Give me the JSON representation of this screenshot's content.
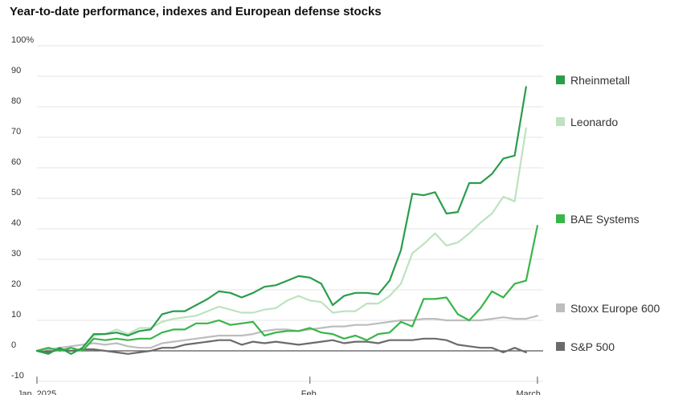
{
  "chart_data": {
    "type": "line",
    "title": "Year-to-date performance, indexes and European defense stocks",
    "y_ticks": [
      "100%",
      "90",
      "80",
      "70",
      "60",
      "50",
      "40",
      "30",
      "20",
      "10",
      "0",
      "-10"
    ],
    "y_tick_values": [
      100,
      90,
      80,
      70,
      60,
      50,
      40,
      30,
      20,
      10,
      0,
      -10
    ],
    "x_ticks": [
      "Jan. 2025",
      "Feb.",
      "March"
    ],
    "x_tick_values": [
      0,
      24,
      44
    ],
    "ylim": [
      -10,
      100
    ],
    "xlim": [
      0,
      44.5
    ],
    "grid": true,
    "legend": "right",
    "series": [
      {
        "name": "Rheinmetall",
        "color": "#2a9d4b",
        "values": [
          [
            0,
            0
          ],
          [
            1,
            -1
          ],
          [
            2,
            1
          ],
          [
            3,
            -1
          ],
          [
            4,
            1
          ],
          [
            5,
            5.5
          ],
          [
            6,
            5.5
          ],
          [
            7,
            6
          ],
          [
            8,
            5
          ],
          [
            9,
            6.5
          ],
          [
            10,
            7
          ],
          [
            11,
            12
          ],
          [
            12,
            13
          ],
          [
            13,
            13
          ],
          [
            14,
            15
          ],
          [
            15,
            17
          ],
          [
            16,
            19.5
          ],
          [
            17,
            19
          ],
          [
            18,
            17.5
          ],
          [
            19,
            19
          ],
          [
            20,
            21
          ],
          [
            21,
            21.5
          ],
          [
            22,
            23
          ],
          [
            23,
            24.5
          ],
          [
            24,
            24
          ],
          [
            25,
            22
          ],
          [
            26,
            15
          ],
          [
            27,
            18
          ],
          [
            28,
            19
          ],
          [
            29,
            19
          ],
          [
            30,
            18.5
          ],
          [
            31,
            23
          ],
          [
            32,
            33
          ],
          [
            33,
            51.5
          ],
          [
            34,
            51
          ],
          [
            35,
            52
          ],
          [
            36,
            45
          ],
          [
            37,
            45.5
          ],
          [
            38,
            55
          ],
          [
            39,
            55
          ],
          [
            40,
            58
          ],
          [
            41,
            63
          ],
          [
            42,
            64
          ],
          [
            43,
            86.5
          ]
        ]
      },
      {
        "name": "Leonardo",
        "color": "#bde3bf",
        "values": [
          [
            0,
            0
          ],
          [
            1,
            1
          ],
          [
            2,
            0
          ],
          [
            3,
            1
          ],
          [
            4,
            0
          ],
          [
            5,
            5
          ],
          [
            6,
            5.5
          ],
          [
            7,
            7
          ],
          [
            8,
            5.5
          ],
          [
            9,
            7.5
          ],
          [
            10,
            7.5
          ],
          [
            11,
            9.5
          ],
          [
            12,
            10.5
          ],
          [
            13,
            11
          ],
          [
            14,
            11.5
          ],
          [
            15,
            13
          ],
          [
            16,
            14.5
          ],
          [
            17,
            13.5
          ],
          [
            18,
            12.5
          ],
          [
            19,
            12.5
          ],
          [
            20,
            13.5
          ],
          [
            21,
            14
          ],
          [
            22,
            16.5
          ],
          [
            23,
            18
          ],
          [
            24,
            16.5
          ],
          [
            25,
            16
          ],
          [
            26,
            12.5
          ],
          [
            27,
            13
          ],
          [
            28,
            13
          ],
          [
            29,
            15.5
          ],
          [
            30,
            15.5
          ],
          [
            31,
            18
          ],
          [
            32,
            22
          ],
          [
            33,
            32
          ],
          [
            34,
            35
          ],
          [
            35,
            38.5
          ],
          [
            36,
            34.5
          ],
          [
            37,
            35.5
          ],
          [
            38,
            38.5
          ],
          [
            39,
            42
          ],
          [
            40,
            45
          ],
          [
            41,
            50.5
          ],
          [
            42,
            49
          ],
          [
            43,
            73
          ]
        ]
      },
      {
        "name": "BAE Systems",
        "color": "#39b54a",
        "values": [
          [
            0,
            0
          ],
          [
            1,
            1
          ],
          [
            2,
            0
          ],
          [
            3,
            1
          ],
          [
            4,
            0
          ],
          [
            5,
            4
          ],
          [
            6,
            3.5
          ],
          [
            7,
            4
          ],
          [
            8,
            3.5
          ],
          [
            9,
            4
          ],
          [
            10,
            4
          ],
          [
            11,
            6
          ],
          [
            12,
            7
          ],
          [
            13,
            7
          ],
          [
            14,
            9
          ],
          [
            15,
            9
          ],
          [
            16,
            10
          ],
          [
            17,
            8.5
          ],
          [
            18,
            9
          ],
          [
            19,
            9.5
          ],
          [
            20,
            5
          ],
          [
            21,
            6
          ],
          [
            22,
            6.5
          ],
          [
            23,
            6.5
          ],
          [
            24,
            7.5
          ],
          [
            25,
            6
          ],
          [
            26,
            5.5
          ],
          [
            27,
            4
          ],
          [
            28,
            5
          ],
          [
            29,
            3.5
          ],
          [
            30,
            5.5
          ],
          [
            31,
            6
          ],
          [
            32,
            9.5
          ],
          [
            33,
            8
          ],
          [
            34,
            17
          ],
          [
            35,
            17
          ],
          [
            36,
            17.5
          ],
          [
            37,
            12
          ],
          [
            38,
            10
          ],
          [
            39,
            14
          ],
          [
            40,
            19.5
          ],
          [
            41,
            17.5
          ],
          [
            42,
            22
          ],
          [
            43,
            23
          ],
          [
            44,
            41
          ]
        ]
      },
      {
        "name": "Stoxx Europe 600",
        "color": "#bdbdbd",
        "values": [
          [
            0,
            0
          ],
          [
            1,
            0.5
          ],
          [
            2,
            1
          ],
          [
            3,
            1.5
          ],
          [
            4,
            2
          ],
          [
            5,
            2.5
          ],
          [
            6,
            2
          ],
          [
            7,
            2.5
          ],
          [
            8,
            1.5
          ],
          [
            9,
            1
          ],
          [
            10,
            1
          ],
          [
            11,
            2.5
          ],
          [
            12,
            3
          ],
          [
            13,
            3.5
          ],
          [
            14,
            4
          ],
          [
            15,
            4.5
          ],
          [
            16,
            5
          ],
          [
            17,
            5
          ],
          [
            18,
            5
          ],
          [
            19,
            5.5
          ],
          [
            20,
            6.5
          ],
          [
            21,
            7
          ],
          [
            22,
            7
          ],
          [
            23,
            6.5
          ],
          [
            24,
            7
          ],
          [
            25,
            7.5
          ],
          [
            26,
            8
          ],
          [
            27,
            8
          ],
          [
            28,
            8.5
          ],
          [
            29,
            8.5
          ],
          [
            30,
            9
          ],
          [
            31,
            9.5
          ],
          [
            32,
            10
          ],
          [
            33,
            10
          ],
          [
            34,
            10.5
          ],
          [
            35,
            10.5
          ],
          [
            36,
            10
          ],
          [
            37,
            10
          ],
          [
            38,
            10
          ],
          [
            39,
            10
          ],
          [
            40,
            10.5
          ],
          [
            41,
            11
          ],
          [
            42,
            10.5
          ],
          [
            43,
            10.5
          ],
          [
            44,
            11.5
          ]
        ]
      },
      {
        "name": "S&P 500",
        "color": "#6b6b6b",
        "values": [
          [
            0,
            0
          ],
          [
            1,
            -0.5
          ],
          [
            2,
            0.5
          ],
          [
            3,
            0
          ],
          [
            4,
            0.5
          ],
          [
            5,
            0.5
          ],
          [
            6,
            0
          ],
          [
            7,
            -0.5
          ],
          [
            8,
            -1
          ],
          [
            9,
            -0.5
          ],
          [
            10,
            0
          ],
          [
            11,
            1
          ],
          [
            12,
            1
          ],
          [
            13,
            2
          ],
          [
            14,
            2.5
          ],
          [
            15,
            3
          ],
          [
            16,
            3.5
          ],
          [
            17,
            3.5
          ],
          [
            18,
            2
          ],
          [
            19,
            3
          ],
          [
            20,
            2.5
          ],
          [
            21,
            3
          ],
          [
            22,
            2.5
          ],
          [
            23,
            2
          ],
          [
            24,
            2.5
          ],
          [
            25,
            3
          ],
          [
            26,
            3.5
          ],
          [
            27,
            2.5
          ],
          [
            28,
            3
          ],
          [
            29,
            3
          ],
          [
            30,
            2.5
          ],
          [
            31,
            3.5
          ],
          [
            32,
            3.5
          ],
          [
            33,
            3.5
          ],
          [
            34,
            4
          ],
          [
            35,
            4
          ],
          [
            36,
            3.5
          ],
          [
            37,
            2
          ],
          [
            38,
            1.5
          ],
          [
            39,
            1
          ],
          [
            40,
            1
          ],
          [
            41,
            -0.5
          ],
          [
            42,
            1
          ],
          [
            43,
            -0.5
          ]
        ]
      }
    ]
  }
}
